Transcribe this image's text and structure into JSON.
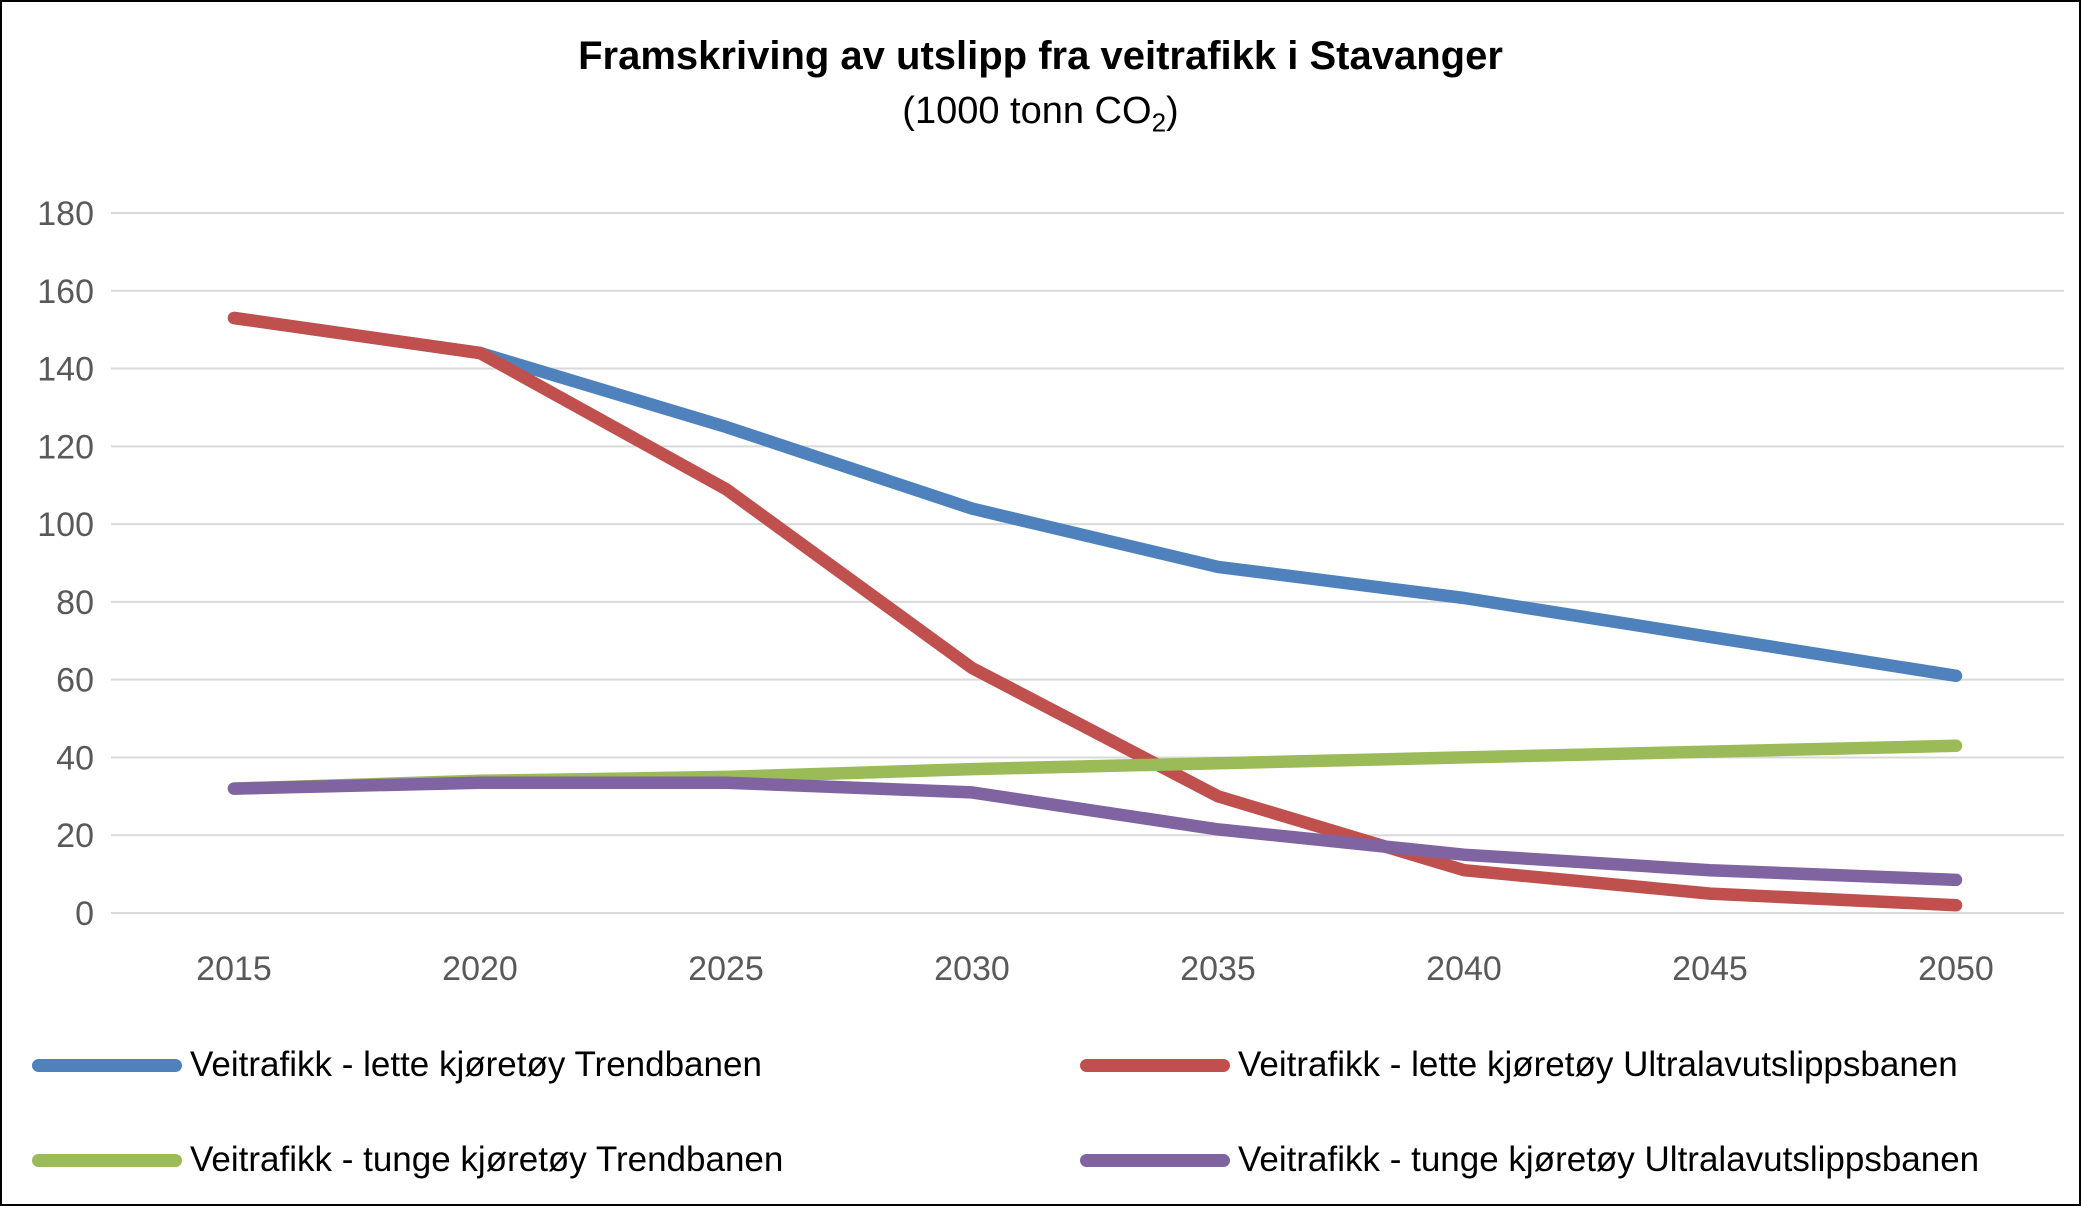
{
  "frame": {
    "background": "#FFFFFF",
    "border_color": "#000000"
  },
  "header": {
    "title": "Framskriving av utslipp fra veitrafikk i Stavanger",
    "subtitle_pre": "(1000 tonn CO",
    "subtitle_sub": "2",
    "subtitle_post": ")"
  },
  "axes": {
    "y_ticks": [
      "0",
      "20",
      "40",
      "60",
      "80",
      "100",
      "120",
      "140",
      "160",
      "180"
    ],
    "x_ticks": [
      "2015",
      "2020",
      "2025",
      "2030",
      "2035",
      "2040",
      "2045",
      "2050"
    ],
    "tick_color": "#595959",
    "gridline_color": "#D9D9D9"
  },
  "chart_data": {
    "type": "line",
    "title": "Framskriving av utslipp fra veitrafikk i Stavanger",
    "subtitle": "(1000 tonn CO2)",
    "categories": [
      "2015",
      "2020",
      "2025",
      "2030",
      "2035",
      "2040",
      "2045",
      "2050"
    ],
    "series": [
      {
        "name": "Veitrafikk - lette kjøretøy Trendbanen",
        "color": "#4F81BD",
        "values": [
          153,
          144,
          125,
          104,
          89,
          81,
          71,
          61
        ]
      },
      {
        "name": "Veitrafikk - lette kjøretøy Ultralavutslippsbanen",
        "color": "#C0504D",
        "values": [
          153,
          144,
          109,
          63,
          30,
          11,
          5,
          2
        ]
      },
      {
        "name": "Veitrafikk - tunge kjøretøy Trendbanen",
        "color": "#9BBB59",
        "values": [
          32,
          34,
          35,
          37,
          38.5,
          40,
          41.5,
          43
        ]
      },
      {
        "name": "Veitrafikk - tunge kjøretøy Ultralavutslippsbanen",
        "color": "#8064A2",
        "values": [
          32,
          33.5,
          33.5,
          31,
          21.5,
          15,
          11,
          8.5
        ]
      }
    ],
    "xlabel": "",
    "ylabel": "",
    "ylim": [
      0,
      180
    ],
    "ytick_step": 20,
    "grid": "horizontal-only",
    "legend_position": "bottom-two-columns",
    "line_width": 12.5
  }
}
